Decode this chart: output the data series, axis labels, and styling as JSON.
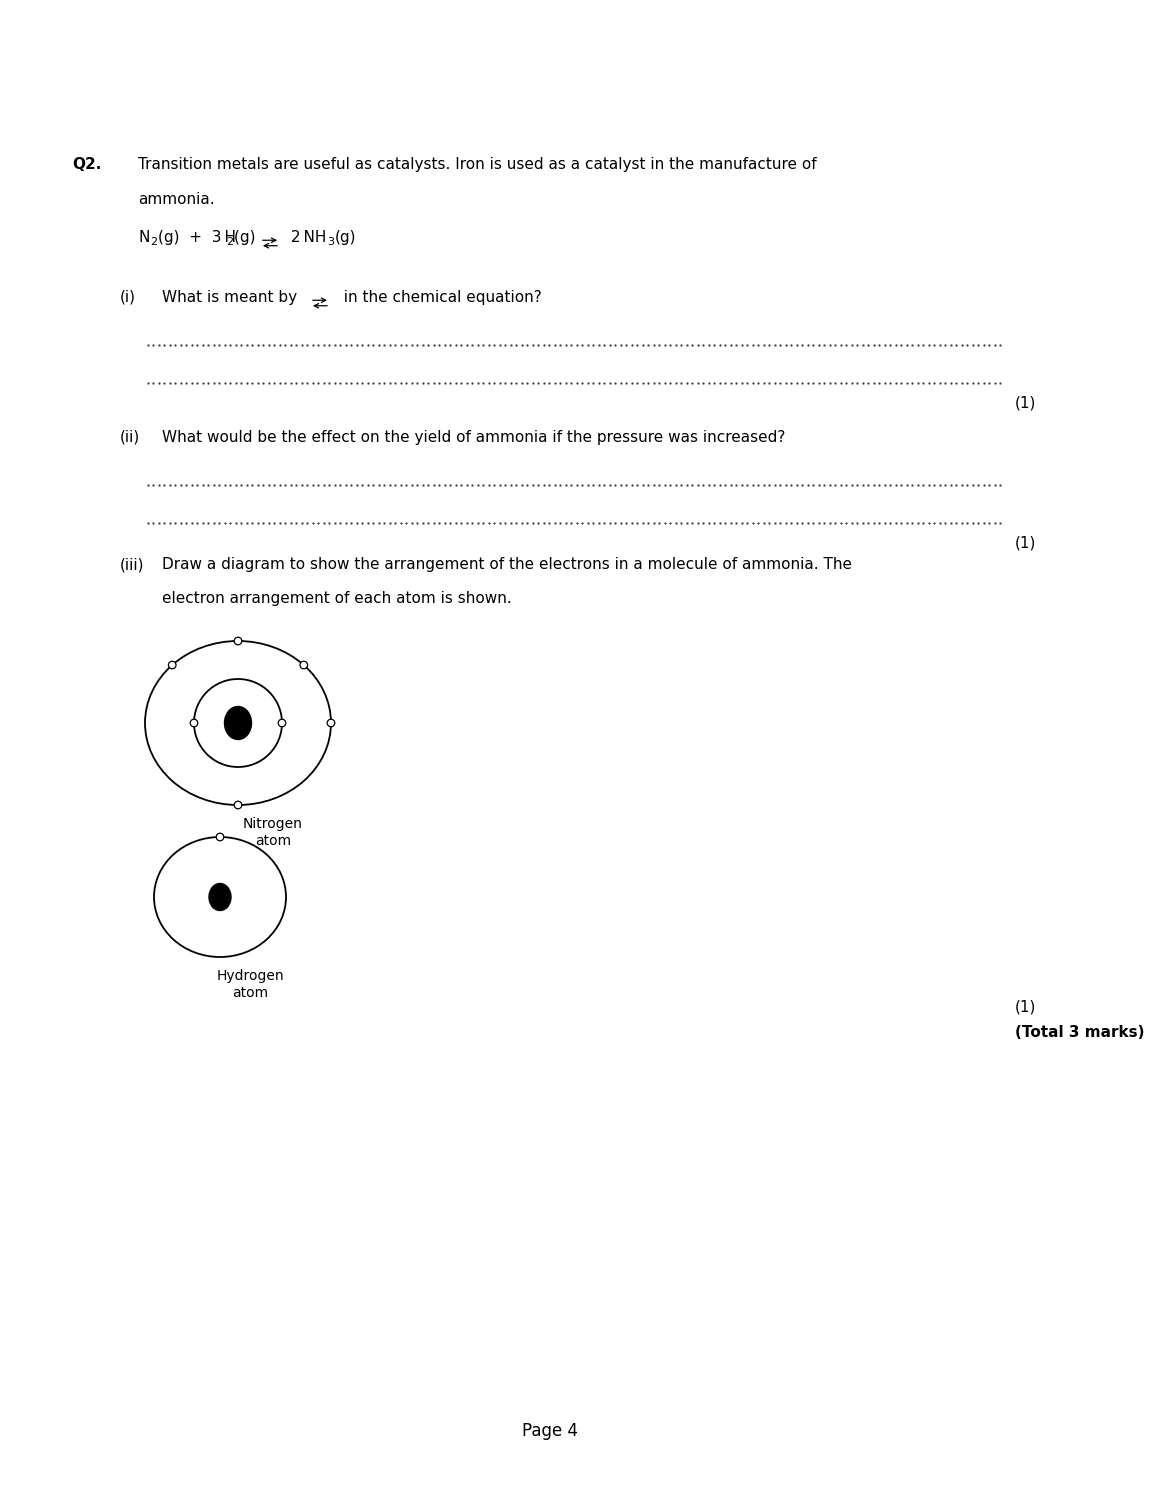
{
  "bg_color": "#ffffff",
  "text_color": "#000000",
  "page_width": 10.8,
  "page_height": 14.75,
  "q2_label": "Q2.",
  "q2_text_line1": "Transition metals are useful as catalysts. Iron is used as a catalyst in the manufacture of",
  "q2_text_line2": "ammonia.",
  "q_i_label": "(i)",
  "q_i_text_pre": "What is meant by  ",
  "q_i_text_post": "  in the chemical equation?",
  "q_ii_label": "(ii)",
  "q_ii_text": "What would be the effect on the yield of ammonia if the pressure was increased?",
  "q_iii_label": "(iii)",
  "q_iii_text_line1": "Draw a diagram to show the arrangement of the electrons in a molecule of ammonia. The",
  "q_iii_text_line2": "electron arrangement of each atom is shown.",
  "nitrogen_label": "Nitrogen\natom",
  "hydrogen_label": "Hydrogen\natom",
  "mark_1": "(1)",
  "total_marks": "(Total 3 marks)",
  "page_label": "Page 4",
  "fontsize_main": 11,
  "fontsize_sub": 8,
  "fontsize_label": 10
}
